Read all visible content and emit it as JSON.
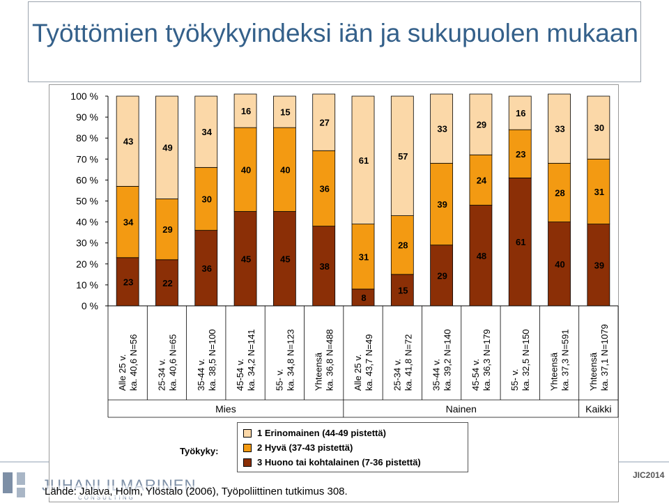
{
  "title": "Työttömien työkykyindeksi iän ja sukupuolen mukaan",
  "chart_data": {
    "type": "bar",
    "stacked": true,
    "percent": true,
    "ylim": [
      0,
      100
    ],
    "yticks": [
      "0 %",
      "10 %",
      "20 %",
      "30 %",
      "40 %",
      "50 %",
      "60 %",
      "70 %",
      "80 %",
      "90 %",
      "100 %"
    ],
    "categories": [
      [
        "Alle 25 v.",
        "ka. 40,6 N=56"
      ],
      [
        "25-34 v.",
        "ka. 40,6 N=65"
      ],
      [
        "35-44 v.",
        "ka. 38,5 N=100"
      ],
      [
        "45-54 v.",
        "ka. 34,2 N=141"
      ],
      [
        "55- v.",
        "ka. 34,8 N=123"
      ],
      [
        "Yhteensä",
        "ka. 36,8 N=488"
      ],
      [
        "Alle 25 v.",
        "ka. 43,7 N=49"
      ],
      [
        "25-34 v.",
        "ka. 41,8 N=72"
      ],
      [
        "35-44 v.",
        "ka. 39,2 N=140"
      ],
      [
        "45-54 v.",
        "ka. 36,3 N=179"
      ],
      [
        "55- v.",
        "ka. 32,5 N=150"
      ],
      [
        "Yhteensä",
        "ka. 37,3 N=591"
      ],
      [
        "Yhteensä",
        "ka. 37,1 N=1079"
      ]
    ],
    "groups": [
      {
        "label": "Mies",
        "count": 6
      },
      {
        "label": "Nainen",
        "count": 6
      },
      {
        "label": "Kaikki",
        "count": 1
      }
    ],
    "series": [
      {
        "name": "3 Huono tai kohtalainen (7-36 pistettä)",
        "color": "#8b2f06",
        "values": [
          23,
          22,
          36,
          45,
          45,
          38,
          8,
          15,
          29,
          48,
          61,
          40,
          39
        ]
      },
      {
        "name": "2 Hyvä (37-43 pistettä)",
        "color": "#f39a12",
        "values": [
          34,
          29,
          30,
          40,
          40,
          36,
          31,
          28,
          39,
          24,
          23,
          28,
          31
        ]
      },
      {
        "name": "1 Erinomainen (44-49 pistettä)",
        "color": "#fbd8a8",
        "values": [
          43,
          49,
          34,
          16,
          15,
          27,
          61,
          57,
          33,
          29,
          16,
          33,
          30
        ]
      }
    ],
    "legend_title": "Työkyky:"
  },
  "source": "Lähde: Jalava, Holm, Ylöstalo (2006), Työpoliittinen tutkimus 308.",
  "logo": {
    "text": "JUHANI ILMARINEN",
    "sub": "CONSULTING"
  },
  "badge": "JIC2014"
}
